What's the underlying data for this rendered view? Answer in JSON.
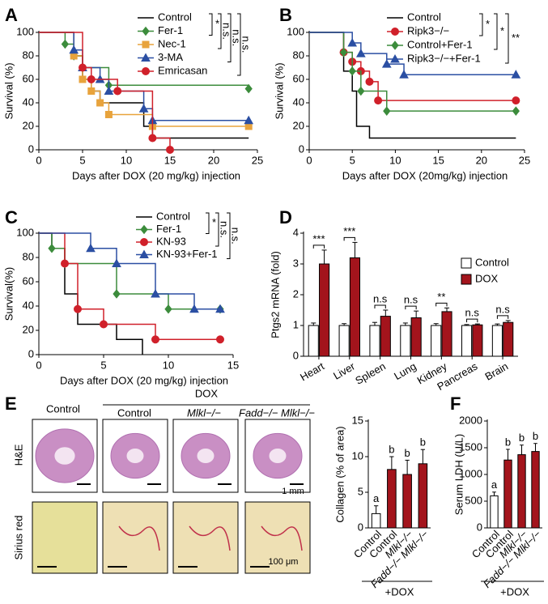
{
  "chart_data": [
    {
      "type": "survival",
      "letter": "A",
      "ylabel": "Survival (%)",
      "xlabel": "Days after DOX (20 mg/kg) injection",
      "xlim": [
        0,
        25
      ],
      "xticks": [
        0,
        5,
        10,
        15,
        20,
        25
      ],
      "ylim": [
        0,
        100
      ],
      "yticks": [
        0,
        20,
        40,
        60,
        80,
        100
      ],
      "series": [
        {
          "name": "Control",
          "color": "#000000",
          "marker": "none",
          "x": [
            0,
            4,
            5,
            6,
            7,
            12,
            13,
            24
          ],
          "values": [
            100,
            80,
            60,
            50,
            40,
            20,
            10,
            10
          ]
        },
        {
          "name": "Fer-1",
          "color": "#3c8c3c",
          "marker": "diamond",
          "x": [
            0,
            3,
            4,
            5,
            8,
            24
          ],
          "values": [
            100,
            90,
            80,
            70,
            55,
            52
          ]
        },
        {
          "name": "Nec-1",
          "color": "#e8a33c",
          "marker": "square",
          "x": [
            0,
            4,
            5,
            6,
            7,
            8,
            13,
            24
          ],
          "values": [
            100,
            80,
            60,
            50,
            40,
            30,
            20,
            20
          ]
        },
        {
          "name": "3-MA",
          "color": "#2b4fa3",
          "marker": "triangle",
          "x": [
            0,
            4,
            5,
            7,
            8,
            12,
            13,
            24
          ],
          "values": [
            100,
            85,
            70,
            60,
            50,
            35,
            25,
            25
          ]
        },
        {
          "name": "Emricasan",
          "color": "#d0202a",
          "marker": "circle",
          "x": [
            0,
            5,
            6,
            9,
            13,
            15
          ],
          "values": [
            100,
            70,
            60,
            50,
            10,
            0
          ]
        }
      ],
      "annotations": [
        "*",
        "n.s.",
        "n.s.",
        "n.s."
      ]
    },
    {
      "type": "survival",
      "letter": "B",
      "ylabel": "Survival (%)",
      "xlabel": "Days after DOX (20mg/kg) injection",
      "xlim": [
        0,
        25
      ],
      "xticks": [
        0,
        5,
        10,
        15,
        20,
        25
      ],
      "ylim": [
        0,
        100
      ],
      "yticks": [
        0,
        20,
        40,
        60,
        80,
        100
      ],
      "series": [
        {
          "name": "Control",
          "color": "#000000",
          "marker": "none",
          "x": [
            0,
            4,
            5,
            5.5,
            6,
            7,
            24
          ],
          "values": [
            100,
            67,
            50,
            20,
            20,
            10,
            10
          ]
        },
        {
          "name": "Ripk3−/−",
          "color": "#d0202a",
          "marker": "circle",
          "x": [
            0,
            4,
            5,
            6,
            7,
            8,
            24
          ],
          "values": [
            100,
            83,
            75,
            67,
            58,
            42,
            42
          ]
        },
        {
          "name": "Control+Fer-1",
          "color": "#3c8c3c",
          "marker": "diamond",
          "x": [
            0,
            4,
            5,
            6,
            9,
            24
          ],
          "values": [
            100,
            83,
            67,
            50,
            33,
            33
          ]
        },
        {
          "name": "Ripk3−/−+Fer-1",
          "color": "#2b4fa3",
          "marker": "triangle",
          "x": [
            0,
            5,
            6,
            9,
            11,
            24
          ],
          "values": [
            100,
            91,
            82,
            73,
            64,
            64
          ]
        }
      ],
      "annotations": [
        "*",
        "*",
        "**"
      ]
    },
    {
      "type": "survival",
      "letter": "C",
      "ylabel": "Survival(%)",
      "xlabel": "Days after DOX (20 mg/kg) injection",
      "xlim": [
        0,
        15
      ],
      "xticks": [
        0,
        5,
        10,
        15
      ],
      "ylim": [
        0,
        100
      ],
      "yticks": [
        0,
        20,
        40,
        60,
        80,
        100
      ],
      "series": [
        {
          "name": "Control",
          "color": "#000000",
          "marker": "none",
          "x": [
            0,
            1,
            2,
            3,
            6,
            8
          ],
          "values": [
            100,
            87.5,
            50,
            25,
            12.5,
            0
          ]
        },
        {
          "name": "Fer-1",
          "color": "#3c8c3c",
          "marker": "diamond",
          "x": [
            0,
            1,
            2,
            6,
            10,
            14
          ],
          "values": [
            100,
            87.5,
            75,
            50,
            37.5,
            37.5
          ]
        },
        {
          "name": "KN-93",
          "color": "#d0202a",
          "marker": "circle",
          "x": [
            0,
            2,
            3,
            5,
            9,
            14
          ],
          "values": [
            100,
            75,
            37.5,
            25,
            12.5,
            12.5
          ]
        },
        {
          "name": "KN-93+Fer-1",
          "color": "#2b4fa3",
          "marker": "triangle",
          "x": [
            0,
            4,
            6,
            9,
            12,
            14
          ],
          "values": [
            100,
            87.5,
            75,
            50,
            37.5,
            37.5
          ]
        }
      ],
      "annotations": [
        "*",
        "n.s.",
        "n.s."
      ]
    },
    {
      "type": "grouped_bar",
      "letter": "D",
      "ylabel": "Ptgs2 mRNA (fold)",
      "categories": [
        "Heart",
        "Liver",
        "Spleen",
        "Lung",
        "Kidney",
        "Pancreas",
        "Brain"
      ],
      "ylim": [
        0,
        4
      ],
      "yticks": [
        0,
        1,
        2,
        3,
        4
      ],
      "legend": "upper right",
      "series": [
        {
          "name": "Control",
          "color": "#ffffff",
          "values": [
            1,
            1,
            1,
            1,
            1,
            1,
            1
          ],
          "errors": [
            0.08,
            0.06,
            0.1,
            0.08,
            0.06,
            0.03,
            0.05
          ]
        },
        {
          "name": "DOX",
          "color": "#a3141c",
          "values": [
            3.0,
            3.2,
            1.3,
            1.25,
            1.45,
            1.02,
            1.1
          ],
          "errors": [
            0.45,
            0.5,
            0.2,
            0.22,
            0.12,
            0.03,
            0.06
          ]
        }
      ],
      "annotations": [
        "***",
        "***",
        "n.s",
        "n.s",
        "**",
        "n.s",
        "n.s"
      ]
    },
    {
      "type": "bar",
      "ylabel": "Collagen (% of area)",
      "group_label": "+DOX",
      "categories": [
        "Control",
        "Control",
        "Mlkl−/−",
        "Fadd−/− Mlkl−/−"
      ],
      "ylim": [
        0,
        15
      ],
      "yticks": [
        0,
        5,
        10,
        15
      ],
      "colors": [
        "#ffffff",
        "#a3141c",
        "#a3141c",
        "#a3141c"
      ],
      "values": [
        2,
        8.2,
        7.5,
        9
      ],
      "errors": [
        1.1,
        1.8,
        2.0,
        2.0
      ],
      "annotations": [
        "a",
        "b",
        "b",
        "b"
      ]
    },
    {
      "type": "bar",
      "letter": "F",
      "ylabel": "Serum LDH (U/L)",
      "group_label": "+DOX",
      "categories": [
        "Control",
        "Control",
        "Mlkl−/−",
        "Fadd−/− Mlkl−/−"
      ],
      "ylim": [
        0,
        2000
      ],
      "yticks": [
        0,
        500,
        1000,
        1500,
        2000
      ],
      "colors": [
        "#ffffff",
        "#a3141c",
        "#a3141c",
        "#a3141c"
      ],
      "values": [
        600,
        1270,
        1370,
        1430
      ],
      "errors": [
        70,
        200,
        180,
        150
      ],
      "annotations": [
        "a",
        "b",
        "b",
        "b"
      ]
    }
  ],
  "histology": {
    "letter": "E",
    "control": "Control",
    "dox": "DOX",
    "columns": [
      "Control",
      "Mlkl−/−",
      "Fadd−/− Mlkl−/−"
    ],
    "rows": [
      "H&E",
      "Sirius red"
    ],
    "scale_he": "1 mm",
    "scale_sr": "100 μm"
  }
}
